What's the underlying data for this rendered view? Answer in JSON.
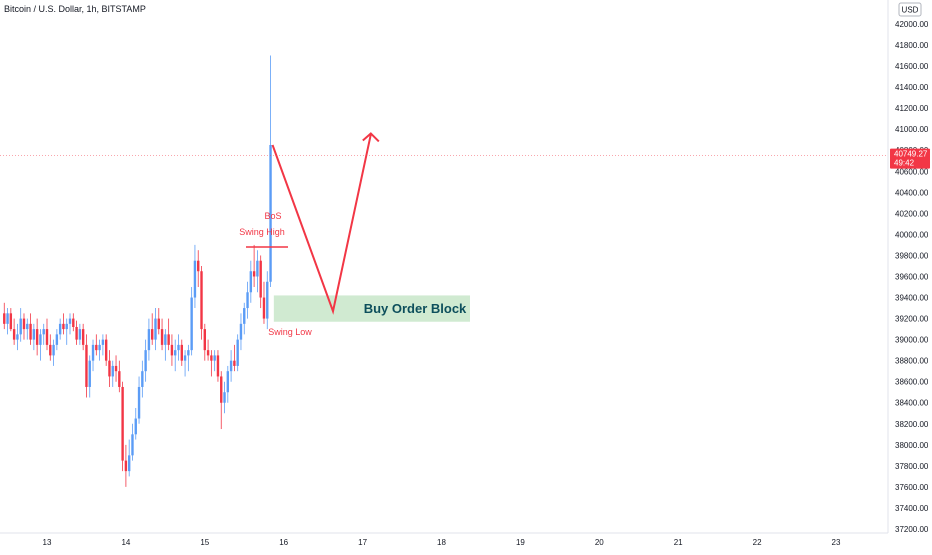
{
  "header": {
    "symbol_title": "Bitcoin / U.S. Dollar, 1h, BITSTAMP"
  },
  "axis": {
    "currency": "USD"
  },
  "price_label": {
    "price": "40749.27",
    "countdown": "49:42"
  },
  "colors": {
    "up": "#5b9cf6",
    "down": "#f23645",
    "annotation": "#f23645",
    "order_block_fill": "#c8e6c9",
    "order_block_text": "#0d4f5c",
    "price_label_bg": "#f23645"
  },
  "annotations": {
    "bos": "BoS",
    "swing_high": "Swing High",
    "swing_low": "Swing Low",
    "order_block": "Buy Order Block"
  },
  "chart_data": {
    "type": "candlestick",
    "title": "Bitcoin / U.S. Dollar, 1h, BITSTAMP",
    "y_unit": "USD",
    "ylim": [
      37200,
      42000
    ],
    "y_ticks": [
      37200,
      37400,
      37600,
      37800,
      38000,
      38200,
      38400,
      38600,
      38800,
      39000,
      39200,
      39400,
      39600,
      39800,
      40000,
      40200,
      40400,
      40600,
      40800,
      41000,
      41200,
      41400,
      41600,
      41800,
      42000
    ],
    "x_ticks": [
      "13",
      "14",
      "15",
      "16",
      "17",
      "18",
      "19",
      "20",
      "21",
      "22",
      "23"
    ],
    "x_tick_hours": [
      0,
      24,
      48,
      72,
      96,
      120,
      144,
      168,
      192,
      216,
      240
    ],
    "candles": [
      {
        "t": -13,
        "o": 39250,
        "h": 39350,
        "l": 39100,
        "c": 39150
      },
      {
        "t": -12,
        "o": 39150,
        "h": 39300,
        "l": 39050,
        "c": 39250
      },
      {
        "t": -11,
        "o": 39250,
        "h": 39300,
        "l": 39080,
        "c": 39100
      },
      {
        "t": -10,
        "o": 39100,
        "h": 39200,
        "l": 38950,
        "c": 39000
      },
      {
        "t": -9,
        "o": 39000,
        "h": 39150,
        "l": 38900,
        "c": 39050
      },
      {
        "t": -8,
        "o": 39050,
        "h": 39300,
        "l": 38980,
        "c": 39200
      },
      {
        "t": -7,
        "o": 39200,
        "h": 39250,
        "l": 39000,
        "c": 39100
      },
      {
        "t": -6,
        "o": 39100,
        "h": 39200,
        "l": 39000,
        "c": 39150
      },
      {
        "t": -5,
        "o": 39150,
        "h": 39250,
        "l": 38950,
        "c": 39000
      },
      {
        "t": -4,
        "o": 39000,
        "h": 39150,
        "l": 38900,
        "c": 39100
      },
      {
        "t": -3,
        "o": 39100,
        "h": 39200,
        "l": 38850,
        "c": 38950
      },
      {
        "t": -2,
        "o": 38950,
        "h": 39100,
        "l": 38800,
        "c": 39050
      },
      {
        "t": -1,
        "o": 39050,
        "h": 39150,
        "l": 38950,
        "c": 39100
      },
      {
        "t": 0,
        "o": 39100,
        "h": 39200,
        "l": 38900,
        "c": 38950
      },
      {
        "t": 1,
        "o": 38950,
        "h": 39050,
        "l": 38800,
        "c": 38850
      },
      {
        "t": 2,
        "o": 38850,
        "h": 39000,
        "l": 38750,
        "c": 38950
      },
      {
        "t": 3,
        "o": 38950,
        "h": 39100,
        "l": 38900,
        "c": 39050
      },
      {
        "t": 4,
        "o": 39050,
        "h": 39200,
        "l": 39000,
        "c": 39150
      },
      {
        "t": 5,
        "o": 39150,
        "h": 39250,
        "l": 39050,
        "c": 39100
      },
      {
        "t": 6,
        "o": 39100,
        "h": 39200,
        "l": 38950,
        "c": 39150
      },
      {
        "t": 7,
        "o": 39150,
        "h": 39250,
        "l": 39050,
        "c": 39200
      },
      {
        "t": 8,
        "o": 39200,
        "h": 39250,
        "l": 39080,
        "c": 39120
      },
      {
        "t": 9,
        "o": 39120,
        "h": 39180,
        "l": 38950,
        "c": 39000
      },
      {
        "t": 10,
        "o": 39000,
        "h": 39150,
        "l": 38950,
        "c": 39100
      },
      {
        "t": 11,
        "o": 39100,
        "h": 39150,
        "l": 38900,
        "c": 38950
      },
      {
        "t": 12,
        "o": 38950,
        "h": 39050,
        "l": 38450,
        "c": 38550
      },
      {
        "t": 13,
        "o": 38550,
        "h": 38850,
        "l": 38450,
        "c": 38800
      },
      {
        "t": 14,
        "o": 38800,
        "h": 39000,
        "l": 38700,
        "c": 38950
      },
      {
        "t": 15,
        "o": 38950,
        "h": 39050,
        "l": 38850,
        "c": 38900
      },
      {
        "t": 16,
        "o": 38900,
        "h": 39000,
        "l": 38800,
        "c": 38950
      },
      {
        "t": 17,
        "o": 38950,
        "h": 39050,
        "l": 38850,
        "c": 39000
      },
      {
        "t": 18,
        "o": 39000,
        "h": 39050,
        "l": 38750,
        "c": 38800
      },
      {
        "t": 19,
        "o": 38800,
        "h": 38900,
        "l": 38550,
        "c": 38650
      },
      {
        "t": 20,
        "o": 38650,
        "h": 38800,
        "l": 38550,
        "c": 38750
      },
      {
        "t": 21,
        "o": 38750,
        "h": 38850,
        "l": 38600,
        "c": 38700
      },
      {
        "t": 22,
        "o": 38700,
        "h": 38800,
        "l": 38500,
        "c": 38550
      },
      {
        "t": 23,
        "o": 38550,
        "h": 38600,
        "l": 37750,
        "c": 37850
      },
      {
        "t": 24,
        "o": 37850,
        "h": 38000,
        "l": 37600,
        "c": 37750
      },
      {
        "t": 25,
        "o": 37750,
        "h": 38050,
        "l": 37700,
        "c": 37900
      },
      {
        "t": 26,
        "o": 37900,
        "h": 38200,
        "l": 37850,
        "c": 38100
      },
      {
        "t": 27,
        "o": 38100,
        "h": 38350,
        "l": 38050,
        "c": 38250
      },
      {
        "t": 28,
        "o": 38250,
        "h": 38650,
        "l": 38200,
        "c": 38550
      },
      {
        "t": 29,
        "o": 38550,
        "h": 38800,
        "l": 38450,
        "c": 38700
      },
      {
        "t": 30,
        "o": 38700,
        "h": 39000,
        "l": 38600,
        "c": 38900
      },
      {
        "t": 31,
        "o": 38900,
        "h": 39200,
        "l": 38800,
        "c": 39100
      },
      {
        "t": 32,
        "o": 39100,
        "h": 39250,
        "l": 38950,
        "c": 39000
      },
      {
        "t": 33,
        "o": 39000,
        "h": 39300,
        "l": 38900,
        "c": 39200
      },
      {
        "t": 34,
        "o": 39200,
        "h": 39300,
        "l": 39050,
        "c": 39100
      },
      {
        "t": 35,
        "o": 39100,
        "h": 39200,
        "l": 38900,
        "c": 38950
      },
      {
        "t": 36,
        "o": 38950,
        "h": 39100,
        "l": 38800,
        "c": 39050
      },
      {
        "t": 37,
        "o": 39050,
        "h": 39200,
        "l": 38900,
        "c": 38950
      },
      {
        "t": 38,
        "o": 38950,
        "h": 39050,
        "l": 38750,
        "c": 38850
      },
      {
        "t": 39,
        "o": 38850,
        "h": 39000,
        "l": 38700,
        "c": 38900
      },
      {
        "t": 40,
        "o": 38900,
        "h": 39050,
        "l": 38800,
        "c": 38950
      },
      {
        "t": 41,
        "o": 38950,
        "h": 39000,
        "l": 38750,
        "c": 38800
      },
      {
        "t": 42,
        "o": 38800,
        "h": 38900,
        "l": 38650,
        "c": 38850
      },
      {
        "t": 43,
        "o": 38850,
        "h": 38950,
        "l": 38700,
        "c": 38900
      },
      {
        "t": 44,
        "o": 38900,
        "h": 39500,
        "l": 38850,
        "c": 39400
      },
      {
        "t": 45,
        "o": 39400,
        "h": 39900,
        "l": 39300,
        "c": 39750
      },
      {
        "t": 46,
        "o": 39750,
        "h": 39850,
        "l": 39500,
        "c": 39650
      },
      {
        "t": 47,
        "o": 39650,
        "h": 39700,
        "l": 39000,
        "c": 39100
      },
      {
        "t": 48,
        "o": 39100,
        "h": 39150,
        "l": 38800,
        "c": 38900
      },
      {
        "t": 49,
        "o": 38900,
        "h": 39000,
        "l": 38800,
        "c": 38850
      },
      {
        "t": 50,
        "o": 38850,
        "h": 38900,
        "l": 38650,
        "c": 38800
      },
      {
        "t": 51,
        "o": 38800,
        "h": 38900,
        "l": 38700,
        "c": 38850
      },
      {
        "t": 52,
        "o": 38850,
        "h": 38900,
        "l": 38600,
        "c": 38650
      },
      {
        "t": 53,
        "o": 38650,
        "h": 38700,
        "l": 38150,
        "c": 38400
      },
      {
        "t": 54,
        "o": 38400,
        "h": 38600,
        "l": 38300,
        "c": 38500
      },
      {
        "t": 55,
        "o": 38500,
        "h": 38750,
        "l": 38400,
        "c": 38700
      },
      {
        "t": 56,
        "o": 38700,
        "h": 38900,
        "l": 38600,
        "c": 38800
      },
      {
        "t": 57,
        "o": 38800,
        "h": 38950,
        "l": 38700,
        "c": 38750
      },
      {
        "t": 58,
        "o": 38750,
        "h": 39050,
        "l": 38700,
        "c": 39000
      },
      {
        "t": 59,
        "o": 39000,
        "h": 39250,
        "l": 38900,
        "c": 39150
      },
      {
        "t": 60,
        "o": 39150,
        "h": 39350,
        "l": 39050,
        "c": 39300
      },
      {
        "t": 61,
        "o": 39300,
        "h": 39550,
        "l": 39200,
        "c": 39450
      },
      {
        "t": 62,
        "o": 39450,
        "h": 39750,
        "l": 39350,
        "c": 39650
      },
      {
        "t": 63,
        "o": 39650,
        "h": 39900,
        "l": 39500,
        "c": 39600
      },
      {
        "t": 64,
        "o": 39600,
        "h": 39850,
        "l": 39450,
        "c": 39750
      },
      {
        "t": 65,
        "o": 39750,
        "h": 39800,
        "l": 39300,
        "c": 39400
      },
      {
        "t": 66,
        "o": 39400,
        "h": 39550,
        "l": 39150,
        "c": 39200
      },
      {
        "t": 67,
        "o": 39200,
        "h": 39650,
        "l": 39100,
        "c": 39550
      },
      {
        "t": 68,
        "o": 39550,
        "h": 41700,
        "l": 39500,
        "c": 40850
      }
    ]
  }
}
